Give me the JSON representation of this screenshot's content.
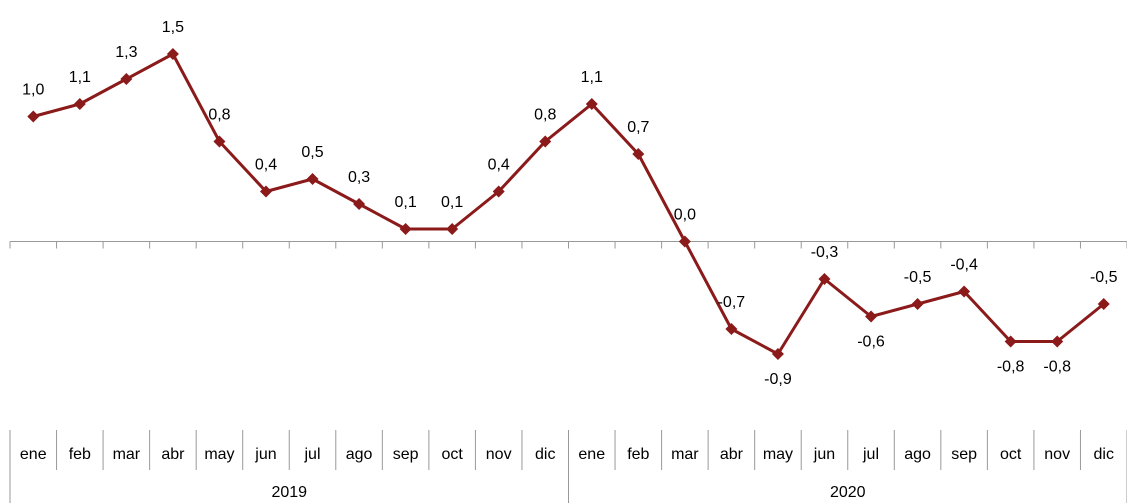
{
  "chart_data": {
    "type": "line",
    "categories": [
      "ene",
      "feb",
      "mar",
      "abr",
      "may",
      "jun",
      "jul",
      "ago",
      "sep",
      "oct",
      "nov",
      "dic",
      "ene",
      "feb",
      "mar",
      "abr",
      "may",
      "jun",
      "jul",
      "ago",
      "sep",
      "oct",
      "nov",
      "dic"
    ],
    "groups": [
      "2019",
      "2020"
    ],
    "series": [
      {
        "color": "#8b1a1a",
        "values": [
          1.0,
          1.1,
          1.3,
          1.5,
          0.8,
          0.4,
          0.5,
          0.3,
          0.1,
          0.1,
          0.4,
          0.8,
          1.1,
          0.7,
          0.0,
          -0.7,
          -0.9,
          -0.3,
          -0.6,
          -0.5,
          -0.4,
          -0.8,
          -0.8,
          -0.5
        ],
        "value_labels": [
          "1,0",
          "1,1",
          "1,3",
          "1,5",
          "0,8",
          "0,4",
          "0,5",
          "0,3",
          "0,1",
          "0,1",
          "0,4",
          "0,8",
          "1,1",
          "0,7",
          "0,0",
          "-0,7",
          "-0,9",
          "-0,3",
          "-0,6",
          "-0,5",
          "-0,4",
          "-0,8",
          "-0,8",
          "-0,5"
        ]
      }
    ]
  }
}
